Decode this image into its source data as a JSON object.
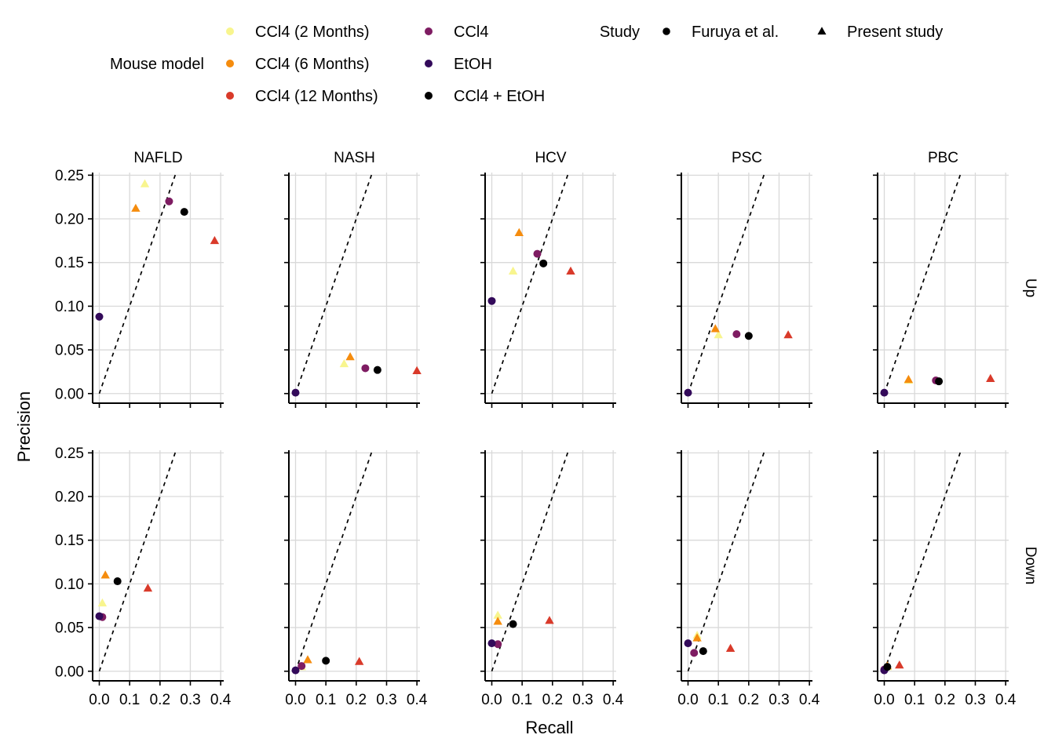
{
  "chart_data": {
    "type": "scatter",
    "xlabel": "Recall",
    "ylabel": "Precision",
    "xlim": [
      0,
      0.4
    ],
    "ylim": [
      0,
      0.25
    ],
    "x_ticks": [
      "0.0",
      "0.1",
      "0.2",
      "0.3",
      "0.4"
    ],
    "y_ticks": [
      "0.00",
      "0.05",
      "0.10",
      "0.15",
      "0.20",
      "0.25"
    ],
    "grid": true,
    "reference_line": {
      "style": "dashed",
      "slope": 1,
      "intercept": 0
    },
    "columns": [
      "NAFLD",
      "NASH",
      "HCV",
      "PSC",
      "PBC"
    ],
    "rows": [
      "Up",
      "Down"
    ],
    "legend": {
      "position": "top",
      "mouse_model_title": "Mouse model",
      "study_title": "Study",
      "mouse_models": [
        {
          "name": "CCl4 (2 Months)",
          "color": "#f8f58e"
        },
        {
          "name": "CCl4 (6 Months)",
          "color": "#f58c0e"
        },
        {
          "name": "CCl4 (12 Months)",
          "color": "#d93a2a"
        },
        {
          "name": "CCl4",
          "color": "#7e1c62"
        },
        {
          "name": "EtOH",
          "color": "#330a5a"
        },
        {
          "name": "CCl4 + EtOH",
          "color": "#000000"
        }
      ],
      "studies": [
        {
          "name": "Furuya et al.",
          "shape": "circle"
        },
        {
          "name": "Present study",
          "shape": "triangle"
        }
      ]
    },
    "panels": [
      {
        "row": "Up",
        "col": "NAFLD",
        "points": [
          {
            "model": "CCl4 (2 Months)",
            "study": "Present study",
            "x": 0.15,
            "y": 0.24
          },
          {
            "model": "CCl4 (6 Months)",
            "study": "Present study",
            "x": 0.12,
            "y": 0.212
          },
          {
            "model": "CCl4 (12 Months)",
            "study": "Present study",
            "x": 0.38,
            "y": 0.175
          },
          {
            "model": "CCl4",
            "study": "Furuya et al.",
            "x": 0.23,
            "y": 0.22
          },
          {
            "model": "EtOH",
            "study": "Furuya et al.",
            "x": 0.0,
            "y": 0.088
          },
          {
            "model": "CCl4 + EtOH",
            "study": "Furuya et al.",
            "x": 0.28,
            "y": 0.208
          }
        ]
      },
      {
        "row": "Up",
        "col": "NASH",
        "points": [
          {
            "model": "CCl4 (2 Months)",
            "study": "Present study",
            "x": 0.16,
            "y": 0.034
          },
          {
            "model": "CCl4 (6 Months)",
            "study": "Present study",
            "x": 0.18,
            "y": 0.042
          },
          {
            "model": "CCl4 (12 Months)",
            "study": "Present study",
            "x": 0.4,
            "y": 0.026
          },
          {
            "model": "CCl4",
            "study": "Furuya et al.",
            "x": 0.23,
            "y": 0.029
          },
          {
            "model": "EtOH",
            "study": "Furuya et al.",
            "x": 0.0,
            "y": 0.001
          },
          {
            "model": "CCl4 + EtOH",
            "study": "Furuya et al.",
            "x": 0.27,
            "y": 0.027
          }
        ]
      },
      {
        "row": "Up",
        "col": "HCV",
        "points": [
          {
            "model": "CCl4 (2 Months)",
            "study": "Present study",
            "x": 0.07,
            "y": 0.14
          },
          {
            "model": "CCl4 (6 Months)",
            "study": "Present study",
            "x": 0.09,
            "y": 0.184
          },
          {
            "model": "CCl4 (12 Months)",
            "study": "Present study",
            "x": 0.26,
            "y": 0.14
          },
          {
            "model": "CCl4",
            "study": "Furuya et al.",
            "x": 0.15,
            "y": 0.16
          },
          {
            "model": "EtOH",
            "study": "Furuya et al.",
            "x": 0.0,
            "y": 0.106
          },
          {
            "model": "CCl4 + EtOH",
            "study": "Furuya et al.",
            "x": 0.17,
            "y": 0.149
          }
        ]
      },
      {
        "row": "Up",
        "col": "PSC",
        "points": [
          {
            "model": "CCl4 (2 Months)",
            "study": "Present study",
            "x": 0.1,
            "y": 0.067
          },
          {
            "model": "CCl4 (6 Months)",
            "study": "Present study",
            "x": 0.09,
            "y": 0.074
          },
          {
            "model": "CCl4 (12 Months)",
            "study": "Present study",
            "x": 0.33,
            "y": 0.067
          },
          {
            "model": "CCl4",
            "study": "Furuya et al.",
            "x": 0.16,
            "y": 0.068
          },
          {
            "model": "EtOH",
            "study": "Furuya et al.",
            "x": 0.0,
            "y": 0.001
          },
          {
            "model": "CCl4 + EtOH",
            "study": "Furuya et al.",
            "x": 0.2,
            "y": 0.066
          }
        ]
      },
      {
        "row": "Up",
        "col": "PBC",
        "points": [
          {
            "model": "CCl4 (2 Months)",
            "study": "Present study",
            "x": 0.08,
            "y": 0.015
          },
          {
            "model": "CCl4 (6 Months)",
            "study": "Present study",
            "x": 0.08,
            "y": 0.016
          },
          {
            "model": "CCl4 (12 Months)",
            "study": "Present study",
            "x": 0.35,
            "y": 0.017
          },
          {
            "model": "CCl4",
            "study": "Furuya et al.",
            "x": 0.17,
            "y": 0.015
          },
          {
            "model": "EtOH",
            "study": "Furuya et al.",
            "x": 0.0,
            "y": 0.001
          },
          {
            "model": "CCl4 + EtOH",
            "study": "Furuya et al.",
            "x": 0.18,
            "y": 0.014
          }
        ]
      },
      {
        "row": "Down",
        "col": "NAFLD",
        "points": [
          {
            "model": "CCl4 (2 Months)",
            "study": "Present study",
            "x": 0.01,
            "y": 0.078
          },
          {
            "model": "CCl4 (6 Months)",
            "study": "Present study",
            "x": 0.02,
            "y": 0.11
          },
          {
            "model": "CCl4 (12 Months)",
            "study": "Present study",
            "x": 0.16,
            "y": 0.095
          },
          {
            "model": "CCl4",
            "study": "Furuya et al.",
            "x": 0.01,
            "y": 0.062
          },
          {
            "model": "EtOH",
            "study": "Furuya et al.",
            "x": 0.0,
            "y": 0.063
          },
          {
            "model": "CCl4 + EtOH",
            "study": "Furuya et al.",
            "x": 0.06,
            "y": 0.103
          }
        ]
      },
      {
        "row": "Down",
        "col": "NASH",
        "points": [
          {
            "model": "CCl4 (2 Months)",
            "study": "Present study",
            "x": 0.02,
            "y": 0.005
          },
          {
            "model": "CCl4 (6 Months)",
            "study": "Present study",
            "x": 0.04,
            "y": 0.013
          },
          {
            "model": "CCl4 (12 Months)",
            "study": "Present study",
            "x": 0.21,
            "y": 0.011
          },
          {
            "model": "CCl4",
            "study": "Furuya et al.",
            "x": 0.02,
            "y": 0.006
          },
          {
            "model": "EtOH",
            "study": "Furuya et al.",
            "x": 0.0,
            "y": 0.001
          },
          {
            "model": "CCl4 + EtOH",
            "study": "Furuya et al.",
            "x": 0.1,
            "y": 0.012
          }
        ]
      },
      {
        "row": "Down",
        "col": "HCV",
        "points": [
          {
            "model": "CCl4 (2 Months)",
            "study": "Present study",
            "x": 0.02,
            "y": 0.064
          },
          {
            "model": "CCl4 (6 Months)",
            "study": "Present study",
            "x": 0.02,
            "y": 0.057
          },
          {
            "model": "CCl4 (12 Months)",
            "study": "Present study",
            "x": 0.19,
            "y": 0.058
          },
          {
            "model": "CCl4",
            "study": "Furuya et al.",
            "x": 0.02,
            "y": 0.031
          },
          {
            "model": "EtOH",
            "study": "Furuya et al.",
            "x": 0.0,
            "y": 0.032
          },
          {
            "model": "CCl4 + EtOH",
            "study": "Furuya et al.",
            "x": 0.07,
            "y": 0.054
          }
        ]
      },
      {
        "row": "Down",
        "col": "PSC",
        "points": [
          {
            "model": "CCl4 (2 Months)",
            "study": "Present study",
            "x": 0.03,
            "y": 0.041
          },
          {
            "model": "CCl4 (6 Months)",
            "study": "Present study",
            "x": 0.03,
            "y": 0.038
          },
          {
            "model": "CCl4 (12 Months)",
            "study": "Present study",
            "x": 0.14,
            "y": 0.026
          },
          {
            "model": "CCl4",
            "study": "Furuya et al.",
            "x": 0.02,
            "y": 0.021
          },
          {
            "model": "EtOH",
            "study": "Furuya et al.",
            "x": 0.0,
            "y": 0.032
          },
          {
            "model": "CCl4 + EtOH",
            "study": "Furuya et al.",
            "x": 0.05,
            "y": 0.023
          }
        ]
      },
      {
        "row": "Down",
        "col": "PBC",
        "points": [
          {
            "model": "CCl4 (2 Months)",
            "study": "Present study",
            "x": 0.01,
            "y": 0.005
          },
          {
            "model": "CCl4 (6 Months)",
            "study": "Present study",
            "x": 0.01,
            "y": 0.006
          },
          {
            "model": "CCl4 (12 Months)",
            "study": "Present study",
            "x": 0.05,
            "y": 0.007
          },
          {
            "model": "CCl4",
            "study": "Furuya et al.",
            "x": 0.0,
            "y": 0.002
          },
          {
            "model": "EtOH",
            "study": "Furuya et al.",
            "x": 0.0,
            "y": 0.001
          },
          {
            "model": "CCl4 + EtOH",
            "study": "Furuya et al.",
            "x": 0.01,
            "y": 0.005
          }
        ]
      }
    ]
  }
}
